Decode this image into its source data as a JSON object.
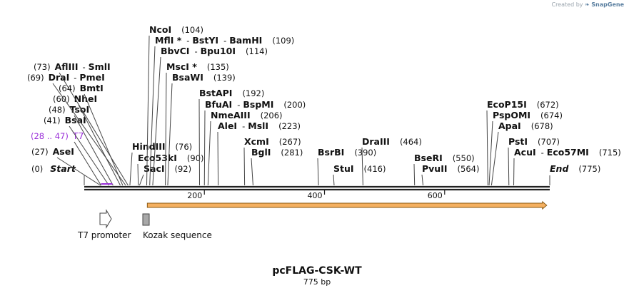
{
  "credit": {
    "prefix": "Created by",
    "brand": "SnapGene"
  },
  "plasmid": {
    "name": "pcFLAG-CSK-WT",
    "length_label": "775 bp",
    "length": 775
  },
  "ruler_ticks": [
    {
      "pos": 200,
      "label": "200"
    },
    {
      "pos": 400,
      "label": "400"
    },
    {
      "pos": 600,
      "label": "600"
    }
  ],
  "sites": [
    {
      "name": "Start",
      "pos_label": "(0)",
      "pos": 0,
      "kind": "start"
    },
    {
      "name": "AseI",
      "pos_label": "(27)",
      "pos": 27
    },
    {
      "name": "T7",
      "pos_label": "(28 .. 47)",
      "pos": 28,
      "kind": "primer"
    },
    {
      "name": "BsaI",
      "pos_label": "(41)",
      "pos": 41
    },
    {
      "name": "TsoI",
      "pos_label": "(48)",
      "pos": 48
    },
    {
      "name": "NheI",
      "pos_label": "(60)",
      "pos": 60
    },
    {
      "name": "BmtI",
      "pos_label": "(64)",
      "pos": 64
    },
    {
      "name": "DraI",
      "extra": "PmeI",
      "pos_label": "(69)",
      "pos": 69
    },
    {
      "name": "AflIII",
      "extra": "SmlI",
      "pos_label": "(73)",
      "pos": 73
    },
    {
      "name": "HindIII",
      "pos_label": "(76)",
      "pos": 76
    },
    {
      "name": "Eco53kI",
      "pos_label": "(90)",
      "pos": 90
    },
    {
      "name": "SacI",
      "pos_label": "(92)",
      "pos": 92
    },
    {
      "name": "NcoI",
      "pos_label": "(104)",
      "pos": 104
    },
    {
      "name": "MflI *",
      "extra": "BstYI",
      "extra2": "BamHI",
      "pos_label": "(109)",
      "pos": 109
    },
    {
      "name": "BbvCI",
      "extra": "Bpu10I",
      "pos_label": "(114)",
      "pos": 114
    },
    {
      "name": "MscI *",
      "pos_label": "(135)",
      "pos": 135
    },
    {
      "name": "BsaWI",
      "pos_label": "(139)",
      "pos": 139
    },
    {
      "name": "BstAPI",
      "pos_label": "(192)",
      "pos": 192
    },
    {
      "name": "BfuAI",
      "extra": "BspMI",
      "pos_label": "(200)",
      "pos": 200
    },
    {
      "name": "NmeAIII",
      "pos_label": "(206)",
      "pos": 206
    },
    {
      "name": "AleI",
      "extra": "MslI",
      "pos_label": "(223)",
      "pos": 223
    },
    {
      "name": "XcmI",
      "pos_label": "(267)",
      "pos": 267
    },
    {
      "name": "BglI",
      "pos_label": "(281)",
      "pos": 281
    },
    {
      "name": "BsrBI",
      "pos_label": "(390)",
      "pos": 390
    },
    {
      "name": "StuI",
      "pos_label": "(416)",
      "pos": 416
    },
    {
      "name": "DraIII",
      "pos_label": "(464)",
      "pos": 464
    },
    {
      "name": "BseRI",
      "pos_label": "(550)",
      "pos": 550
    },
    {
      "name": "PvuII",
      "pos_label": "(564)",
      "pos": 564
    },
    {
      "name": "EcoP15I",
      "pos_label": "(672)",
      "pos": 672
    },
    {
      "name": "PspOMI",
      "pos_label": "(674)",
      "pos": 674
    },
    {
      "name": "ApaI",
      "pos_label": "(678)",
      "pos": 678
    },
    {
      "name": "PstI",
      "pos_label": "(707)",
      "pos": 707
    },
    {
      "name": "AcuI",
      "extra": "Eco57MI",
      "pos_label": "(715)",
      "pos": 715
    },
    {
      "name": "End",
      "pos_label": "(775)",
      "pos": 775,
      "kind": "end"
    }
  ],
  "features": {
    "t7_promoter": {
      "label": "T7 promoter",
      "type": "promoter",
      "color": "#ffffff"
    },
    "kozak": {
      "label": "Kozak sequence",
      "type": "misc",
      "color": "#a8a8a8"
    },
    "orf": {
      "start": 105,
      "end": 770,
      "color": "#f5b060",
      "edge": "#8a5a14"
    }
  },
  "colors": {
    "primer": "#9b30d9",
    "backbone": "#222222"
  }
}
